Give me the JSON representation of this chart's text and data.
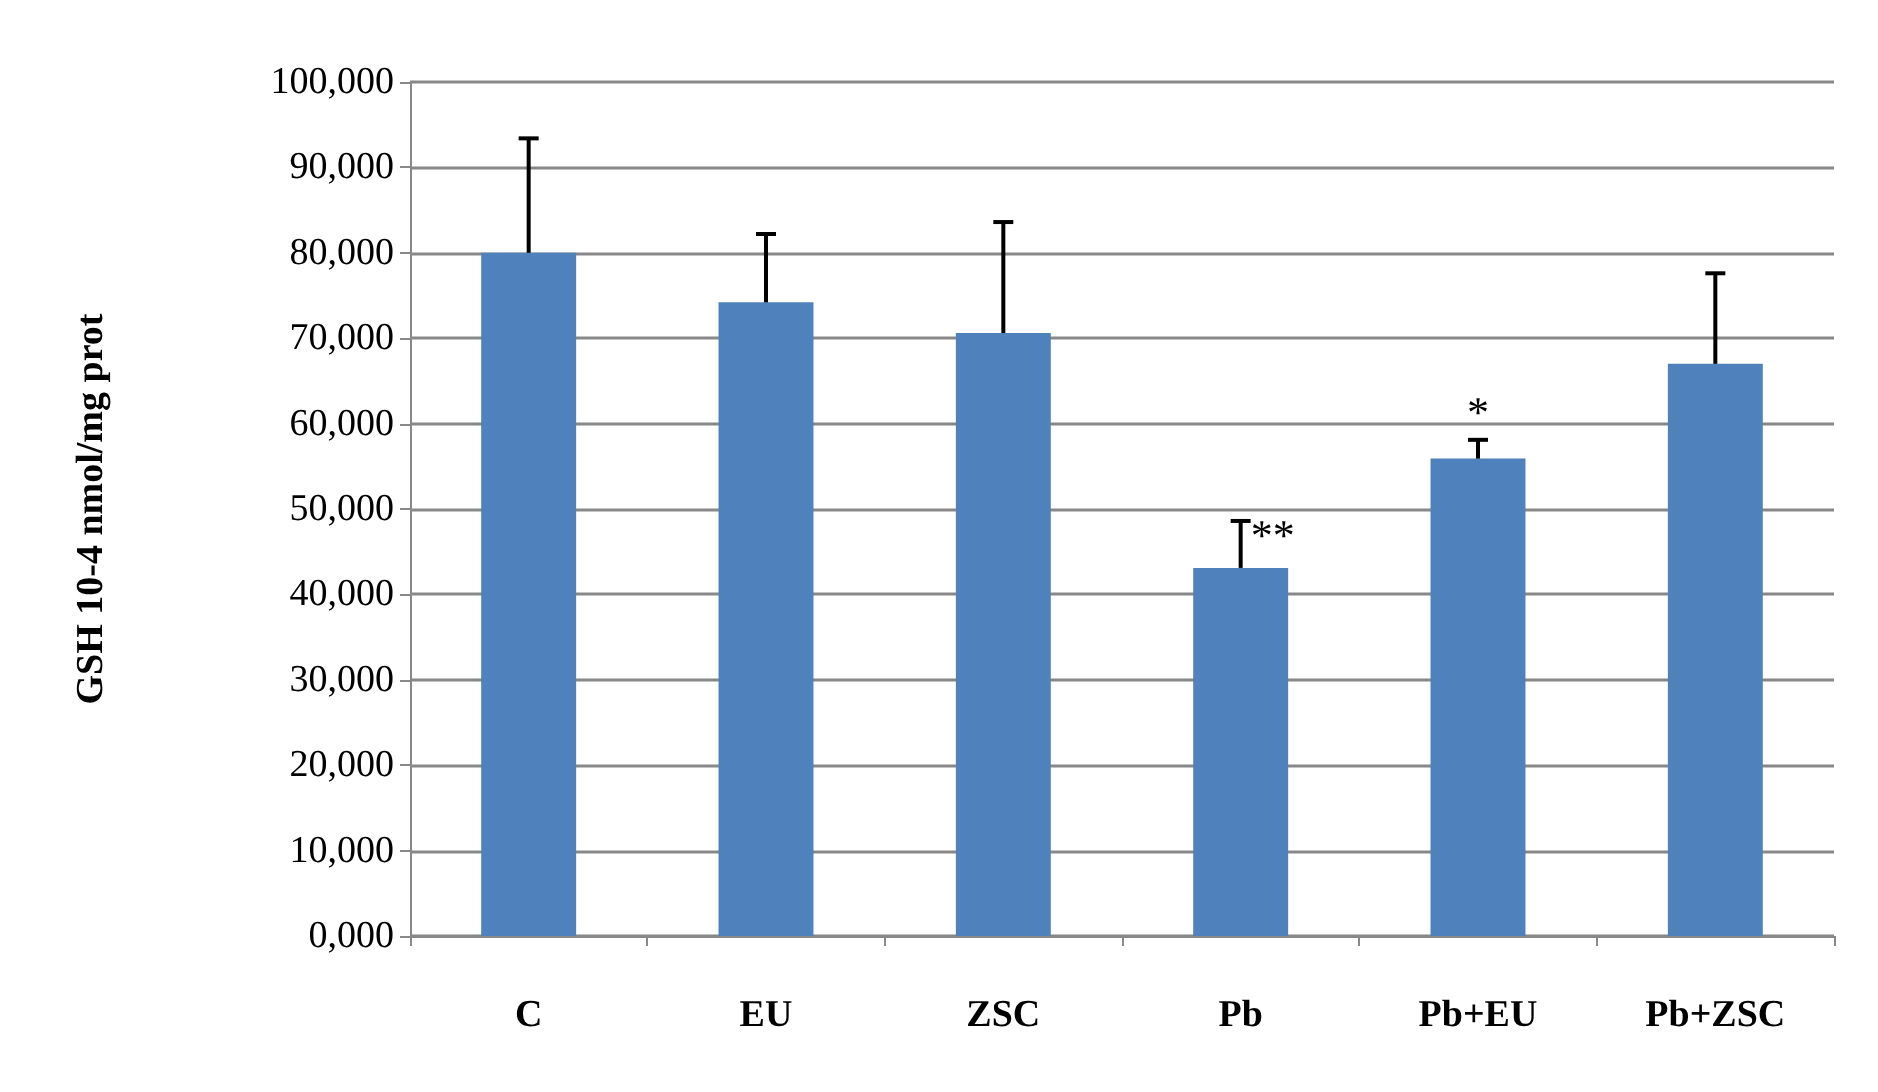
{
  "chart_data": {
    "type": "bar",
    "ylabel": "GSH 10-4 nmol/mg prot",
    "categories": [
      "C",
      "EU",
      "ZSC",
      "Pb",
      "Pb+EU",
      "Pb+ZSC"
    ],
    "values": [
      80000,
      74200,
      70600,
      43100,
      55900,
      67000
    ],
    "errors": [
      [
        80000,
        93400
      ],
      [
        74200,
        82200
      ],
      [
        70600,
        83600
      ],
      [
        43100,
        48600
      ],
      [
        55900,
        58100
      ],
      [
        67000,
        77600
      ]
    ],
    "color": "#4f81bd",
    "ylim": [
      0,
      100000
    ],
    "yticks": [
      {
        "value": 0,
        "label": "0,000"
      },
      {
        "value": 10000,
        "label": "10,000"
      },
      {
        "value": 20000,
        "label": "20,000"
      },
      {
        "value": 30000,
        "label": "30,000"
      },
      {
        "value": 40000,
        "label": "40,000"
      },
      {
        "value": 50000,
        "label": "50,000"
      },
      {
        "value": 60000,
        "label": "60,000"
      },
      {
        "value": 70000,
        "label": "70,000"
      },
      {
        "value": 80000,
        "label": "80,000"
      },
      {
        "value": 90000,
        "label": "90,000"
      },
      {
        "value": 100000,
        "label": "100,000"
      }
    ],
    "annotations": [
      {
        "text": "**",
        "x": "Pb",
        "y": 47000
      },
      {
        "text": "*",
        "x": "Pb+EU",
        "y": 58100
      }
    ],
    "grid": "y"
  }
}
